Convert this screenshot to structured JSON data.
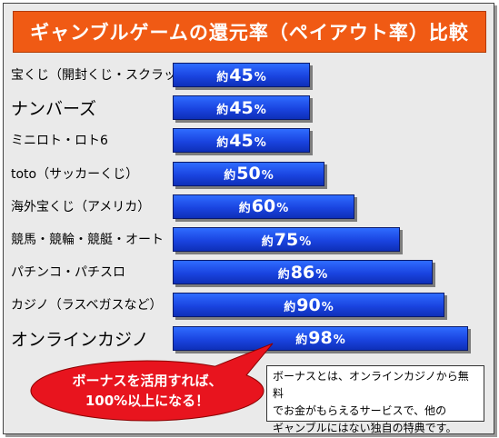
{
  "title": "ギャンブルゲームの還元率（ペイアウト率）比較",
  "chart_data": {
    "type": "bar",
    "orientation": "horizontal",
    "value_prefix": "約",
    "value_suffix": "%",
    "categories": [
      "宝くじ（開封くじ・スクラッチ）",
      "ナンバーズ",
      "ミニロト・ロト6",
      "toto（サッカーくじ）",
      "海外宝くじ（アメリカ）",
      "競馬・競輪・競艇・オート",
      "パチンコ・パチスロ",
      "カジノ（ラスベガスなど）",
      "オンラインカジノ"
    ],
    "values": [
      45,
      45,
      45,
      50,
      60,
      75,
      86,
      90,
      98
    ],
    "xlim": [
      0,
      100
    ],
    "bar_color": "#1a44e0",
    "grid": false
  },
  "callout": {
    "line1": "ボーナスを活用すれば、",
    "line2": "100%以上になる！",
    "color": "#e8141e"
  },
  "note": {
    "line1": "ボーナスとは、オンラインカジノから無料",
    "line2": "でお金がもらえるサービスで、他の",
    "line3": "ギャンブルにはない独自の特典です。"
  }
}
